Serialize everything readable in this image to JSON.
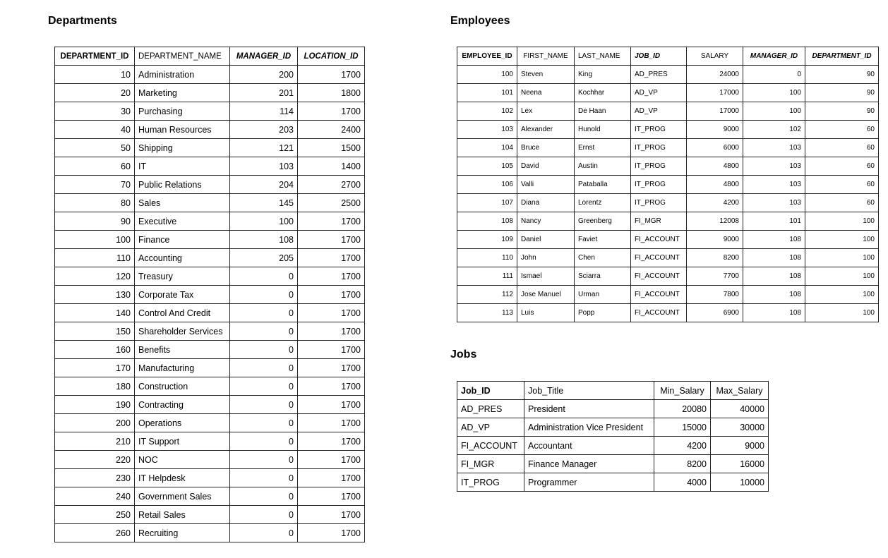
{
  "departments": {
    "title": "Departments",
    "columns": [
      "DEPARTMENT_ID",
      "DEPARTMENT_NAME",
      "MANAGER_ID",
      "LOCATION_ID"
    ],
    "rows": [
      [
        10,
        "Administration",
        200,
        1700
      ],
      [
        20,
        "Marketing",
        201,
        1800
      ],
      [
        30,
        "Purchasing",
        114,
        1700
      ],
      [
        40,
        "Human Resources",
        203,
        2400
      ],
      [
        50,
        "Shipping",
        121,
        1500
      ],
      [
        60,
        "IT",
        103,
        1400
      ],
      [
        70,
        "Public Relations",
        204,
        2700
      ],
      [
        80,
        "Sales",
        145,
        2500
      ],
      [
        90,
        "Executive",
        100,
        1700
      ],
      [
        100,
        "Finance",
        108,
        1700
      ],
      [
        110,
        "Accounting",
        205,
        1700
      ],
      [
        120,
        "Treasury",
        0,
        1700
      ],
      [
        130,
        "Corporate Tax",
        0,
        1700
      ],
      [
        140,
        "Control And Credit",
        0,
        1700
      ],
      [
        150,
        "Shareholder Services",
        0,
        1700
      ],
      [
        160,
        "Benefits",
        0,
        1700
      ],
      [
        170,
        "Manufacturing",
        0,
        1700
      ],
      [
        180,
        "Construction",
        0,
        1700
      ],
      [
        190,
        "Contracting",
        0,
        1700
      ],
      [
        200,
        "Operations",
        0,
        1700
      ],
      [
        210,
        "IT Support",
        0,
        1700
      ],
      [
        220,
        "NOC",
        0,
        1700
      ],
      [
        230,
        "IT Helpdesk",
        0,
        1700
      ],
      [
        240,
        "Government Sales",
        0,
        1700
      ],
      [
        250,
        "Retail Sales",
        0,
        1700
      ],
      [
        260,
        "Recruiting",
        0,
        1700
      ]
    ]
  },
  "employees": {
    "title": "Employees",
    "columns": [
      "EMPLOYEE_ID",
      "FIRST_NAME",
      "LAST_NAME",
      "JOB_ID",
      "SALARY",
      "MANAGER_ID",
      "DEPARTMENT_ID"
    ],
    "rows": [
      [
        100,
        "Steven",
        "King",
        "AD_PRES",
        24000,
        0,
        90
      ],
      [
        101,
        "Neena",
        "Kochhar",
        "AD_VP",
        17000,
        100,
        90
      ],
      [
        102,
        "Lex",
        "De Haan",
        "AD_VP",
        17000,
        100,
        90
      ],
      [
        103,
        "Alexander",
        "Hunold",
        "IT_PROG",
        9000,
        102,
        60
      ],
      [
        104,
        "Bruce",
        "Ernst",
        "IT_PROG",
        6000,
        103,
        60
      ],
      [
        105,
        "David",
        "Austin",
        "IT_PROG",
        4800,
        103,
        60
      ],
      [
        106,
        "Valli",
        "Pataballa",
        "IT_PROG",
        4800,
        103,
        60
      ],
      [
        107,
        "Diana",
        "Lorentz",
        "IT_PROG",
        4200,
        103,
        60
      ],
      [
        108,
        "Nancy",
        "Greenberg",
        "FI_MGR",
        12008,
        101,
        100
      ],
      [
        109,
        "Daniel",
        "Faviet",
        "FI_ACCOUNT",
        9000,
        108,
        100
      ],
      [
        110,
        "John",
        "Chen",
        "FI_ACCOUNT",
        8200,
        108,
        100
      ],
      [
        111,
        "Ismael",
        "Sciarra",
        "FI_ACCOUNT",
        7700,
        108,
        100
      ],
      [
        112,
        "Jose Manuel",
        "Urman",
        "FI_ACCOUNT",
        7800,
        108,
        100
      ],
      [
        113,
        "Luis",
        "Popp",
        "FI_ACCOUNT",
        6900,
        108,
        100
      ]
    ]
  },
  "jobs": {
    "title": "Jobs",
    "columns": [
      "Job_ID",
      "Job_Title",
      "Min_Salary",
      "Max_Salary"
    ],
    "rows": [
      [
        "AD_PRES",
        "President",
        20080,
        40000
      ],
      [
        "AD_VP",
        "Administration Vice President",
        15000,
        30000
      ],
      [
        "FI_ACCOUNT",
        "Accountant",
        4200,
        9000
      ],
      [
        "FI_MGR",
        "Finance Manager",
        8200,
        16000
      ],
      [
        "IT_PROG",
        "Programmer",
        4000,
        10000
      ]
    ]
  }
}
